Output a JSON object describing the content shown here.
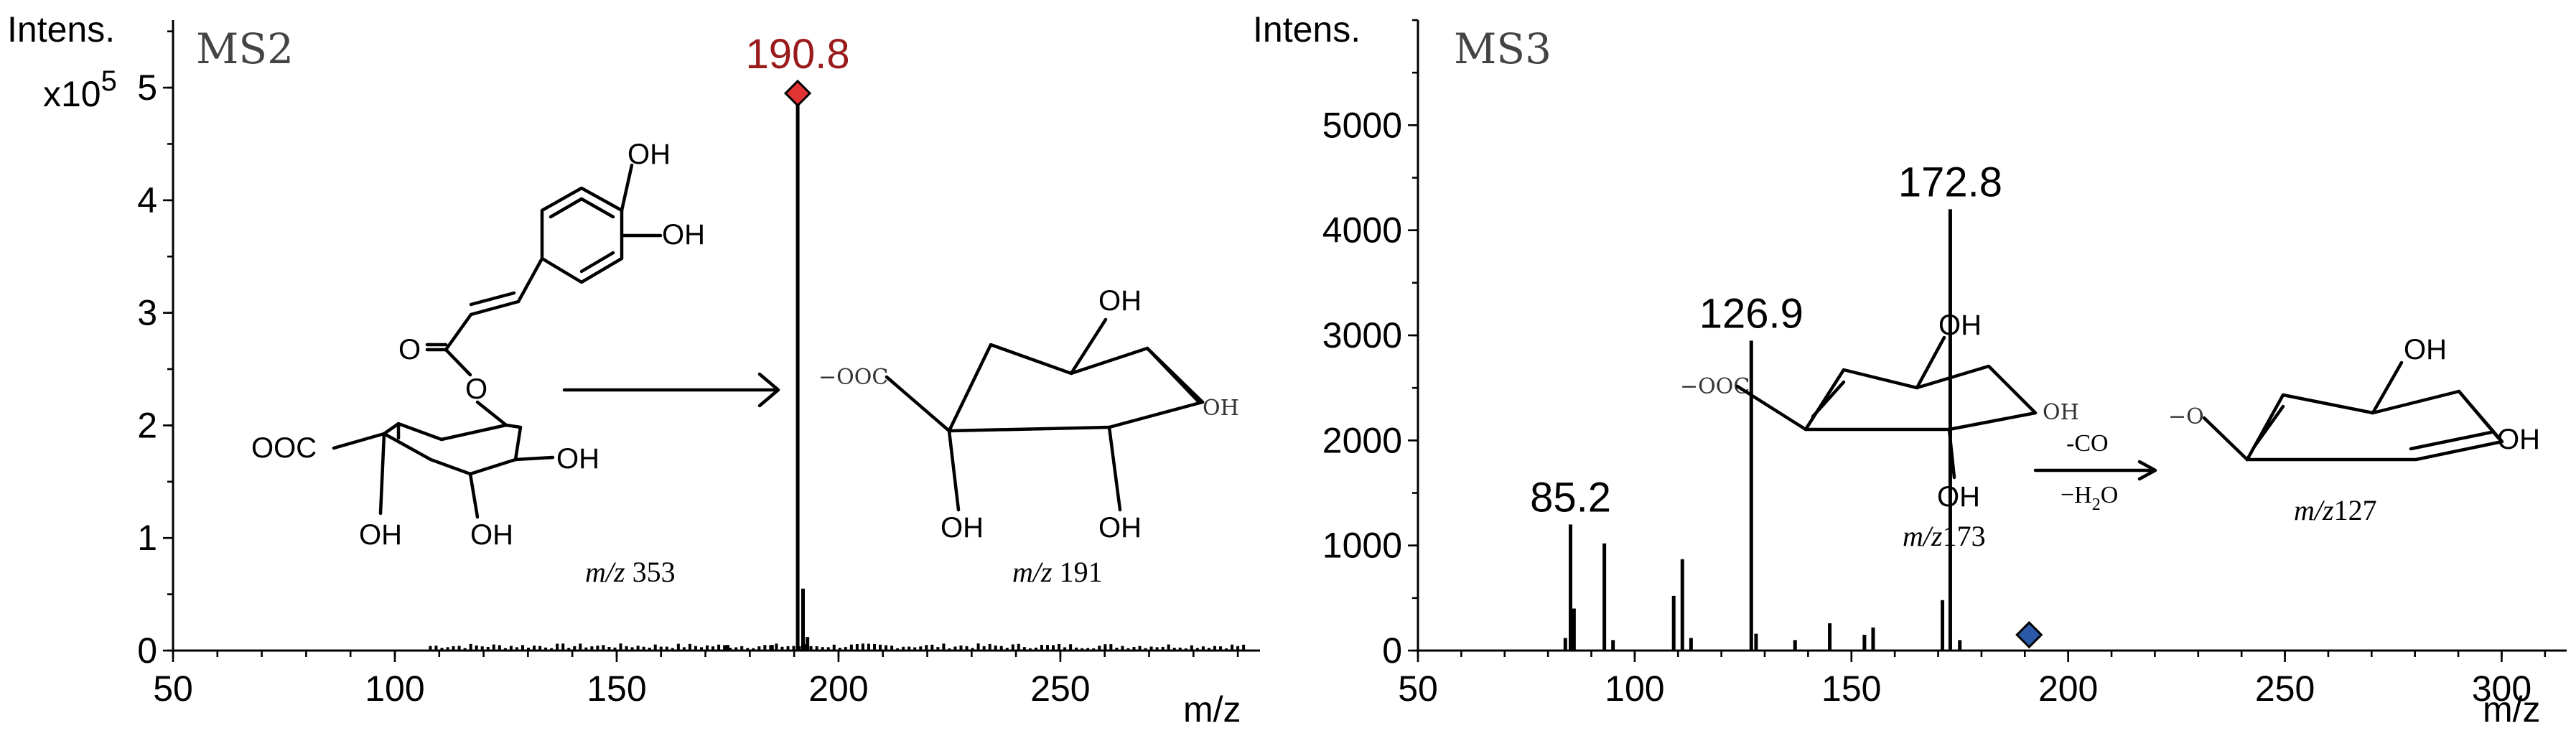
{
  "chart_data": [
    {
      "type": "bar",
      "title": "MS2",
      "ylabel": "Intens.",
      "ylabel_scale": "x10",
      "ylabel_scale_exp": "5",
      "xlabel": "m/z",
      "xlim": [
        50,
        295
      ],
      "ylim": [
        0,
        5.6
      ],
      "x_ticks": [
        50,
        100,
        150,
        200,
        250
      ],
      "y_ticks": [
        0,
        1,
        2,
        3,
        4,
        5
      ],
      "peaks": [
        {
          "x": 190.8,
          "y": 4.95,
          "label": "190.8",
          "marker": "red-diamond"
        },
        {
          "x": 192,
          "y": 0.55
        },
        {
          "x": 193,
          "y": 0.12
        },
        {
          "x": 175,
          "y": 0.05
        },
        {
          "x": 185,
          "y": 0.05
        }
      ],
      "annotations": {
        "precursor_label_em": "m/z",
        "precursor_label_val": " 353",
        "product_label_em": "m/z",
        "product_label_val": " 191",
        "atoms": {
          "oh": "OH",
          "ooc": "OOC",
          "ooc_prod": "−OOC",
          "oh_small": "OH"
        }
      }
    },
    {
      "type": "bar",
      "title": "MS3",
      "ylabel": "Intens.",
      "xlabel": "m/z",
      "xlim": [
        50,
        315
      ],
      "ylim": [
        0,
        6000
      ],
      "x_ticks": [
        50,
        100,
        150,
        200,
        250,
        300
      ],
      "y_ticks": [
        0,
        1000,
        2000,
        3000,
        4000,
        5000
      ],
      "peaks": [
        {
          "x": 85.2,
          "y": 1200,
          "label": "85.2"
        },
        {
          "x": 86,
          "y": 400
        },
        {
          "x": 84,
          "y": 120
        },
        {
          "x": 93,
          "y": 1020
        },
        {
          "x": 95,
          "y": 100
        },
        {
          "x": 109,
          "y": 520
        },
        {
          "x": 111,
          "y": 870
        },
        {
          "x": 113,
          "y": 120
        },
        {
          "x": 126.9,
          "y": 2950,
          "label": "126.9"
        },
        {
          "x": 128,
          "y": 160
        },
        {
          "x": 137,
          "y": 100
        },
        {
          "x": 145,
          "y": 260
        },
        {
          "x": 153,
          "y": 150
        },
        {
          "x": 155,
          "y": 220
        },
        {
          "x": 171,
          "y": 480
        },
        {
          "x": 172.8,
          "y": 4200,
          "label": "172.8"
        },
        {
          "x": 175,
          "y": 100
        }
      ],
      "precursor_marker": {
        "x": 191,
        "y": 150,
        "marker": "blue-diamond"
      },
      "annotations": {
        "ion1_label_em": "m/z",
        "ion1_label_val": "173",
        "ion2_label_em": "m/z",
        "ion2_label_val": "127",
        "loss1": "-CO",
        "loss2_pre": "−H",
        "loss2_sub": "2",
        "loss2_post": "O",
        "atoms": {
          "oh": "OH",
          "ooc": "−OOC",
          "o_minus": "−O"
        }
      }
    }
  ],
  "colors": {
    "red_marker": "#e23333",
    "red_label": "#9a1b1b",
    "blue_marker": "#2b5aa8"
  }
}
